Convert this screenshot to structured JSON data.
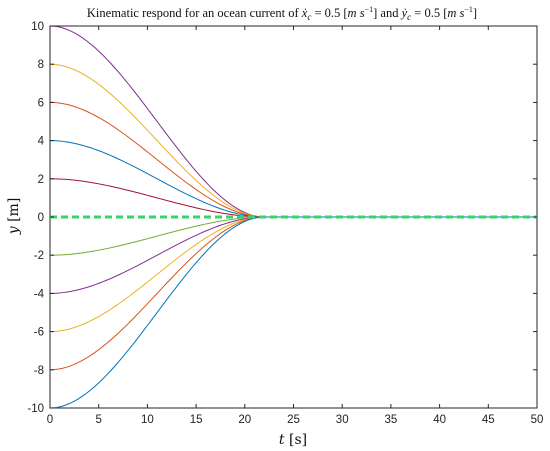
{
  "chart_data": {
    "type": "line",
    "title": "Kinematic respond for an ocean current of ẋ_c = 0.5 [m s⁻¹] and ẏ_c = 0.5 [m s⁻¹]",
    "title_parts": {
      "prefix": "Kinematic respond for an ocean current of ",
      "xc_symbol": "ẋ",
      "xc_sub": "c",
      "eq1": " = 0.5 ",
      "unit1_open": "[",
      "unit1_m": "m",
      "unit1_s": "s",
      "unit1_exp": "−1",
      "unit1_close": "]",
      "middle": " and ",
      "yc_symbol": "ẏ",
      "yc_sub": "c",
      "eq2": " = 0.5 ",
      "unit2_open": "[",
      "unit2_m": "m",
      "unit2_s": "s",
      "unit2_exp": "−1",
      "unit2_close": "]"
    },
    "xlabel": "t [s]",
    "xlabel_parts": {
      "var": "t",
      "unit": "[s]"
    },
    "ylabel": "y [m]",
    "ylabel_parts": {
      "var": "y",
      "unit": "[m]"
    },
    "xlim": [
      0,
      50
    ],
    "ylim": [
      -10,
      10
    ],
    "xticks": [
      0,
      5,
      10,
      15,
      20,
      25,
      30,
      35,
      40,
      45,
      50
    ],
    "yticks": [
      -10,
      -8,
      -6,
      -4,
      -2,
      0,
      2,
      4,
      6,
      8,
      10
    ],
    "grid": false,
    "t_settle": 22,
    "series": [
      {
        "y0": 10,
        "color": "#7e2f8e"
      },
      {
        "y0": 8,
        "color": "#edb120"
      },
      {
        "y0": 6,
        "color": "#d95319"
      },
      {
        "y0": 4,
        "color": "#0072bd"
      },
      {
        "y0": 2,
        "color": "#a2142f"
      },
      {
        "y0": -2,
        "color": "#77ac30"
      },
      {
        "y0": -4,
        "color": "#7e2f8e"
      },
      {
        "y0": -6,
        "color": "#edb120"
      },
      {
        "y0": -8,
        "color": "#d95319"
      },
      {
        "y0": -10,
        "color": "#0072bd"
      }
    ],
    "reference": {
      "y": 0,
      "style": "dashed",
      "color": "#34d56a"
    }
  }
}
